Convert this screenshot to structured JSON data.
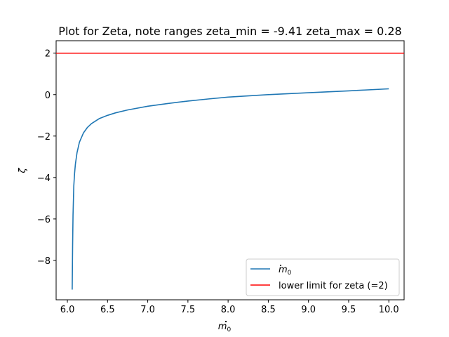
{
  "chart_data": {
    "type": "line",
    "title": "Plot for Zeta, note ranges zeta_min = -9.41 zeta_max = 0.28",
    "xlabel_base": "m",
    "xlabel_sub": "0",
    "ylabel": "ζ",
    "xlim": [
      5.86,
      10.19
    ],
    "ylim": [
      -9.9,
      2.6
    ],
    "x_ticks": [
      {
        "value": 6.0,
        "label": "6.0"
      },
      {
        "value": 6.5,
        "label": "6.5"
      },
      {
        "value": 7.0,
        "label": "7.0"
      },
      {
        "value": 7.5,
        "label": "7.5"
      },
      {
        "value": 8.0,
        "label": "8.0"
      },
      {
        "value": 8.5,
        "label": "8.5"
      },
      {
        "value": 9.0,
        "label": "9.0"
      },
      {
        "value": 9.5,
        "label": "9.5"
      },
      {
        "value": 10.0,
        "label": "10.0"
      }
    ],
    "y_ticks": [
      {
        "value": 2,
        "label": "2"
      },
      {
        "value": 0,
        "label": "0"
      },
      {
        "value": -2,
        "label": "−2"
      },
      {
        "value": -4,
        "label": "−4"
      },
      {
        "value": -6,
        "label": "−6"
      },
      {
        "value": -8,
        "label": "−8"
      }
    ],
    "series": [
      {
        "name": "m_0 (dot)",
        "legend_base": "m",
        "legend_sub": "0",
        "color": "#1f77b4",
        "x": [
          6.06,
          6.065,
          6.07,
          6.08,
          6.09,
          6.1,
          6.12,
          6.15,
          6.2,
          6.25,
          6.3,
          6.4,
          6.5,
          6.6,
          6.75,
          7.0,
          7.25,
          7.5,
          7.75,
          8.0,
          8.5,
          9.0,
          9.5,
          10.0
        ],
        "y": [
          -9.41,
          -7.3,
          -5.8,
          -4.4,
          -3.8,
          -3.35,
          -2.8,
          -2.3,
          -1.85,
          -1.58,
          -1.4,
          -1.15,
          -1.0,
          -0.88,
          -0.74,
          -0.56,
          -0.43,
          -0.31,
          -0.21,
          -0.12,
          0.0,
          0.09,
          0.18,
          0.28
        ]
      },
      {
        "name": "lower limit for zeta (=2)",
        "legend_label": "lower limit for zeta (=2)",
        "color": "#ff0000",
        "type": "hline",
        "y_value": 2
      }
    ],
    "legend_position": "lower-right",
    "grid": false
  }
}
